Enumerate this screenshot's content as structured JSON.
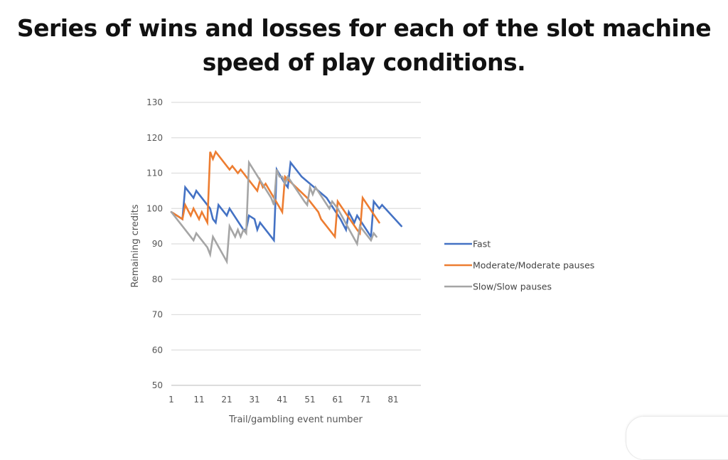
{
  "title_line1": "Series of wins and losses for each of the slot machine",
  "title_line2": "speed of play conditions.",
  "chart_data": {
    "type": "line",
    "title": "Series of wins and losses for each of the slot machine speed of play conditions.",
    "xlabel": "Trail/gambling event number",
    "ylabel": "Remaining credits",
    "ylim": [
      50,
      130
    ],
    "xlim": [
      1,
      90
    ],
    "yticks": [
      50,
      60,
      70,
      80,
      90,
      100,
      110,
      120,
      130
    ],
    "xticks": [
      1,
      11,
      21,
      31,
      41,
      51,
      61,
      71,
      81
    ],
    "grid": "horizontal",
    "legend_position": "right",
    "series": [
      {
        "name": "Fast",
        "color": "#4472C4",
        "points": [
          [
            1,
            99
          ],
          [
            5,
            97
          ],
          [
            6,
            106
          ],
          [
            9,
            103
          ],
          [
            10,
            105
          ],
          [
            15,
            100
          ],
          [
            16,
            97
          ],
          [
            17,
            96
          ],
          [
            18,
            101
          ],
          [
            21,
            98
          ],
          [
            22,
            100
          ],
          [
            27,
            94
          ],
          [
            28,
            94
          ],
          [
            29,
            98
          ],
          [
            31,
            97
          ],
          [
            32,
            94
          ],
          [
            33,
            96
          ],
          [
            38,
            91
          ],
          [
            39,
            111
          ],
          [
            42,
            107
          ],
          [
            43,
            106
          ],
          [
            44,
            113
          ],
          [
            48,
            109
          ],
          [
            57,
            103
          ],
          [
            62,
            97
          ],
          [
            64,
            94
          ],
          [
            65,
            99
          ],
          [
            67,
            96
          ],
          [
            68,
            98
          ],
          [
            73,
            92
          ],
          [
            74,
            102
          ],
          [
            76,
            100
          ],
          [
            77,
            101
          ],
          [
            84,
            95
          ]
        ]
      },
      {
        "name": "Moderate/Moderate pauses",
        "color": "#ED7D31",
        "points": [
          [
            1,
            99
          ],
          [
            5,
            97
          ],
          [
            6,
            101
          ],
          [
            8,
            98
          ],
          [
            9,
            100
          ],
          [
            11,
            97
          ],
          [
            12,
            99
          ],
          [
            14,
            96
          ],
          [
            15,
            116
          ],
          [
            16,
            114
          ],
          [
            17,
            116
          ],
          [
            22,
            111
          ],
          [
            23,
            112
          ],
          [
            25,
            110
          ],
          [
            26,
            111
          ],
          [
            32,
            105
          ],
          [
            33,
            108
          ],
          [
            34,
            106
          ],
          [
            35,
            107
          ],
          [
            41,
            99
          ],
          [
            42,
            109
          ],
          [
            50,
            103
          ],
          [
            51,
            102
          ],
          [
            54,
            99
          ],
          [
            55,
            97
          ],
          [
            60,
            92
          ],
          [
            61,
            102
          ],
          [
            68,
            94
          ],
          [
            69,
            93
          ],
          [
            70,
            103
          ],
          [
            76,
            96
          ]
        ]
      },
      {
        "name": "Slow/Slow pauses",
        "color": "#A5A5A5",
        "points": [
          [
            1,
            99
          ],
          [
            5,
            95
          ],
          [
            9,
            91
          ],
          [
            10,
            93
          ],
          [
            14,
            89
          ],
          [
            15,
            87
          ],
          [
            16,
            92
          ],
          [
            21,
            85
          ],
          [
            22,
            95
          ],
          [
            24,
            92
          ],
          [
            25,
            94
          ],
          [
            26,
            92
          ],
          [
            27,
            94
          ],
          [
            28,
            93
          ],
          [
            29,
            113
          ],
          [
            37,
            103
          ],
          [
            38,
            101
          ],
          [
            39,
            111
          ],
          [
            40,
            109
          ],
          [
            41,
            109
          ],
          [
            42,
            107
          ],
          [
            43,
            109
          ],
          [
            49,
            102
          ],
          [
            50,
            101
          ],
          [
            51,
            106
          ],
          [
            52,
            104
          ],
          [
            53,
            106
          ],
          [
            58,
            100
          ],
          [
            59,
            102
          ],
          [
            61,
            100
          ],
          [
            68,
            90
          ],
          [
            69,
            95
          ],
          [
            73,
            91
          ],
          [
            74,
            93
          ],
          [
            75,
            92
          ]
        ]
      }
    ]
  }
}
